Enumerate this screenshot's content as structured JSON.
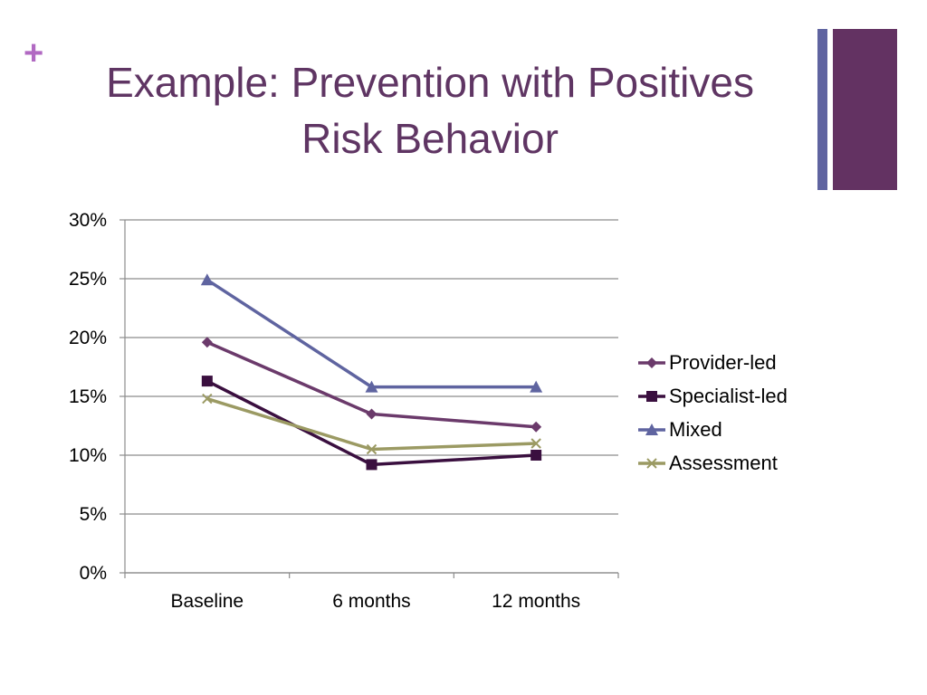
{
  "slide": {
    "bullet": "+",
    "title_lines": [
      "Example:  Prevention with Positives",
      "Risk Behavior"
    ],
    "colors": {
      "title": "#5f3563",
      "bullet": "#b169c2",
      "accent_thin": "#5f64a0",
      "accent_wide": "#633262"
    }
  },
  "chart_data": {
    "type": "line",
    "title": "",
    "xlabel": "",
    "ylabel": "",
    "categories": [
      "Baseline",
      "6 months",
      "12 months"
    ],
    "ylim": [
      0,
      30
    ],
    "yticks": [
      0,
      5,
      10,
      15,
      20,
      25,
      30
    ],
    "ytick_labels": [
      "0%",
      "5%",
      "10%",
      "15%",
      "20%",
      "25%",
      "30%"
    ],
    "grid": true,
    "legend_position": "right",
    "series": [
      {
        "name": "Provider-led",
        "values": [
          19.6,
          13.5,
          12.4
        ],
        "color": "#6b3a6b",
        "marker": "diamond"
      },
      {
        "name": "Specialist-led",
        "values": [
          16.3,
          9.2,
          10.0
        ],
        "color": "#3a0f3f",
        "marker": "square"
      },
      {
        "name": "Mixed",
        "values": [
          24.9,
          15.8,
          15.8
        ],
        "color": "#5f64a0",
        "marker": "triangle"
      },
      {
        "name": "Assessment",
        "values": [
          14.8,
          10.5,
          11.0
        ],
        "color": "#9b9a63",
        "marker": "x"
      }
    ]
  }
}
